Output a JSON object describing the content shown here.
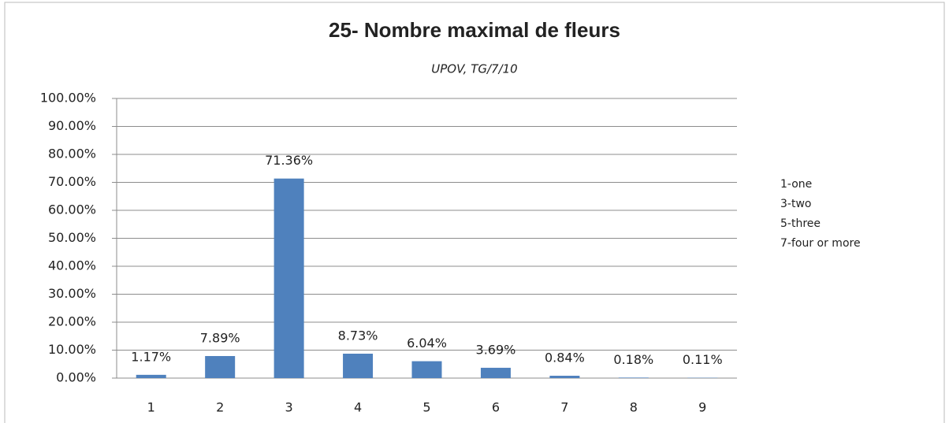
{
  "chart_data": {
    "type": "bar",
    "title": "25- Nombre maximal de fleurs",
    "subtitle": "UPOV, TG/7/10",
    "categories": [
      "1",
      "2",
      "3",
      "4",
      "5",
      "6",
      "7",
      "8",
      "9"
    ],
    "values": [
      1.17,
      7.89,
      71.36,
      8.73,
      6.04,
      3.69,
      0.84,
      0.18,
      0.11
    ],
    "value_labels": [
      "1.17%",
      "7.89%",
      "71.36%",
      "8.73%",
      "6.04%",
      "3.69%",
      "0.84%",
      "0.18%",
      "0.11%"
    ],
    "color": "#4f81bd",
    "ylim": [
      0,
      100
    ],
    "yticks": [
      {
        "value": 0,
        "label": "0.00%"
      },
      {
        "value": 10,
        "label": "10.00%"
      },
      {
        "value": 20,
        "label": "20.00%"
      },
      {
        "value": 30,
        "label": "30.00%"
      },
      {
        "value": 40,
        "label": "40.00%"
      },
      {
        "value": 50,
        "label": "50.00%"
      },
      {
        "value": 60,
        "label": "60.00%"
      },
      {
        "value": 70,
        "label": "70.00%"
      },
      {
        "value": 80,
        "label": "80.00%"
      },
      {
        "value": 90,
        "label": "90.00%"
      },
      {
        "value": 100,
        "label": "100.00%"
      }
    ],
    "grid": true,
    "annotations": [
      "1-one",
      "3-two",
      "5-three",
      "7-four or more"
    ]
  }
}
